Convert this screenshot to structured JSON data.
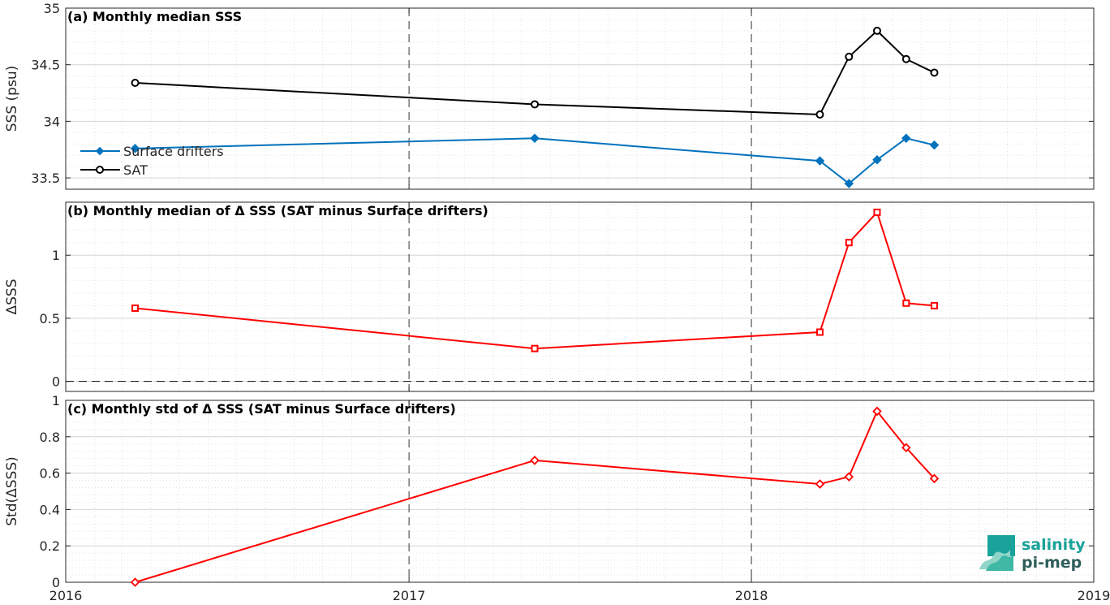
{
  "chart_data": [
    {
      "type": "line",
      "title": "(a) Monthly median SSS",
      "ylabel": "SSS (psu)",
      "xlim": [
        "2016-01-01",
        "2019-01-01"
      ],
      "ylim": [
        33.4,
        35
      ],
      "yticks": [
        33.5,
        34,
        34.5,
        35
      ],
      "ytick_labels": [
        "33.5",
        "34",
        "34.5",
        "35"
      ],
      "legend": "left",
      "grid": true,
      "series": [
        {
          "name": "Surface drifters",
          "color": "#0072bd",
          "marker": "diamond",
          "x": [
            "2016-03-15",
            "2017-05-15",
            "2018-03-15",
            "2018-04-15",
            "2018-05-15",
            "2018-06-15",
            "2018-07-15"
          ],
          "values": [
            33.76,
            33.85,
            33.65,
            33.45,
            33.66,
            33.85,
            33.79
          ]
        },
        {
          "name": "SAT",
          "color": "#000000",
          "marker": "circle",
          "x": [
            "2016-03-15",
            "2017-05-15",
            "2018-03-15",
            "2018-04-15",
            "2018-05-15",
            "2018-06-15",
            "2018-07-15"
          ],
          "values": [
            34.34,
            34.15,
            34.06,
            34.57,
            34.8,
            34.55,
            34.43
          ]
        }
      ]
    },
    {
      "type": "line",
      "title": "(b) Monthly median of Δ SSS (SAT minus Surface drifters)",
      "ylabel": "ΔSSS",
      "xlim": [
        "2016-01-01",
        "2019-01-01"
      ],
      "ylim": [
        -0.08,
        1.42
      ],
      "yticks": [
        0,
        0.5,
        1
      ],
      "ytick_labels": [
        "0",
        "0.5",
        "1"
      ],
      "zero_line": true,
      "grid": true,
      "series": [
        {
          "color": "#ff0000",
          "marker": "square",
          "x": [
            "2016-03-15",
            "2017-05-15",
            "2018-03-15",
            "2018-04-15",
            "2018-05-15",
            "2018-06-15",
            "2018-07-15"
          ],
          "values": [
            0.58,
            0.26,
            0.39,
            1.1,
            1.34,
            0.62,
            0.6
          ]
        }
      ]
    },
    {
      "type": "line",
      "title": "(c) Monthly std of Δ SSS (SAT minus Surface drifters)",
      "ylabel": "Std(ΔSSS)",
      "xlim": [
        "2016-01-01",
        "2019-01-01"
      ],
      "ylim": [
        0,
        1
      ],
      "yticks": [
        0,
        0.2,
        0.4,
        0.6,
        0.8,
        1
      ],
      "ytick_labels": [
        "0",
        "0.2",
        "0.4",
        "0.6",
        "0.8",
        "1"
      ],
      "xticks": [
        "2016-01-01",
        "2017-01-01",
        "2018-01-01",
        "2019-01-01"
      ],
      "xtick_labels": [
        "2016",
        "2017",
        "2018",
        "2019"
      ],
      "grid": true,
      "series": [
        {
          "color": "#ff0000",
          "marker": "diamond",
          "x": [
            "2016-03-15",
            "2017-05-15",
            "2018-03-15",
            "2018-04-15",
            "2018-05-15",
            "2018-06-15",
            "2018-07-15"
          ],
          "values": [
            0.0,
            0.67,
            0.54,
            0.58,
            0.94,
            0.74,
            0.57
          ]
        }
      ]
    }
  ],
  "logo": {
    "line1": "salinity",
    "line2": "pi-mep"
  }
}
